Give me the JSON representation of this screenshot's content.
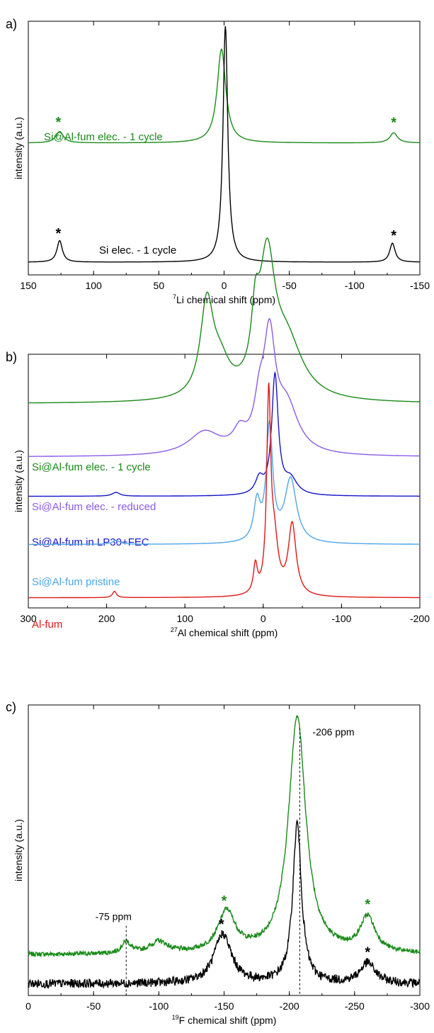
{
  "chart_data": [
    {
      "type": "line",
      "panel": "a)",
      "xlabel_sup": "7",
      "xlabel_main": "Li chemical shift (ppm)",
      "ylabel": "intensity (a.u.)",
      "xlim": [
        150,
        -150
      ],
      "xticks": [
        "150",
        "100",
        "50",
        "0",
        "-50",
        "-100",
        "-150"
      ],
      "xtick_values": [
        150,
        100,
        50,
        0,
        -50,
        -100,
        -150
      ],
      "grid": false,
      "series": [
        {
          "name": "Si@Al-fum elec. - 1 cycle",
          "color": "#1a8a1a",
          "baseline": 0.52,
          "peaks": [
            [
              126,
              0.045,
              3.5
            ],
            [
              2,
              0.37,
              4.0
            ],
            [
              -130,
              0.04,
              3.5
            ]
          ],
          "markers": [
            {
              "x": 127,
              "text": "*"
            },
            {
              "x": -130,
              "text": "*"
            }
          ]
        },
        {
          "name": "Si elec. - 1 cycle",
          "color": "#000000",
          "baseline": 0.05,
          "peaks": [
            [
              126,
              0.085,
              2.5
            ],
            [
              -1,
              0.93,
              2.2
            ],
            [
              -129,
              0.075,
              2.5
            ]
          ],
          "markers": [
            {
              "x": 127,
              "text": "*"
            },
            {
              "x": -130,
              "text": "*"
            }
          ]
        }
      ]
    },
    {
      "type": "line",
      "panel": "b)",
      "xlabel_sup": "27",
      "xlabel_main": "Al chemical shift (ppm)",
      "ylabel": "intensity (a.u.)",
      "xlim": [
        300,
        -200
      ],
      "xticks": [
        "300",
        "200",
        "100",
        "0",
        "-100",
        "-200"
      ],
      "xtick_values": [
        300,
        200,
        100,
        0,
        -100,
        -200
      ],
      "grid": false,
      "series": [
        {
          "name": "Si@Al-fum elec. - 1 cycle",
          "color": "#1a8a1a",
          "baseline": 0.805,
          "peaks": [
            [
              72,
              0.36,
              10
            ],
            [
              55,
              0.12,
              15
            ],
            [
              10,
              0.22,
              6
            ],
            [
              -5,
              0.5,
              12
            ],
            [
              -30,
              0.22,
              25
            ]
          ],
          "markers": []
        },
        {
          "name": "Si@Al-fum elec. - reduced",
          "color": "#8a5ce6",
          "baseline": 0.595,
          "peaks": [
            [
              75,
              0.09,
              25
            ],
            [
              30,
              0.07,
              10
            ],
            [
              5,
              0.15,
              8
            ],
            [
              -8,
              0.42,
              9
            ],
            [
              -30,
              0.18,
              18
            ]
          ],
          "markers": []
        },
        {
          "name": "Si@Al-fum in LP30+FEC",
          "color": "#1515c8",
          "baseline": 0.44,
          "peaks": [
            [
              188,
              0.015,
              6
            ],
            [
              5,
              0.06,
              6
            ],
            [
              -15,
              0.47,
              5
            ],
            [
              -35,
              0.06,
              10
            ]
          ],
          "markers": []
        },
        {
          "name": "Si@Al-fum pristine",
          "color": "#4da6e8",
          "baseline": 0.25,
          "peaks": [
            [
              188,
              0.015,
              6
            ],
            [
              8,
              0.15,
              5
            ],
            [
              -8,
              0.45,
              5
            ],
            [
              -35,
              0.25,
              9
            ]
          ],
          "markers": []
        },
        {
          "name": "Al-fum",
          "color": "#e01818",
          "baseline": 0.04,
          "peaks": [
            [
              190,
              0.025,
              3
            ],
            [
              10,
              0.11,
              3
            ],
            [
              -7,
              0.75,
              3
            ],
            [
              -14,
              0.2,
              6
            ],
            [
              -37,
              0.28,
              6
            ]
          ],
          "markers": []
        }
      ]
    },
    {
      "type": "line",
      "panel": "c)",
      "xlabel_sup": "19",
      "xlabel_main": "F chemical shift (ppm)",
      "ylabel": "intensity (a.u.)",
      "xlim": [
        0,
        -300
      ],
      "xticks": [
        "0",
        "-50",
        "-100",
        "-150",
        "-200",
        "-250",
        "-300"
      ],
      "xtick_values": [
        0,
        -50,
        -100,
        -150,
        -200,
        -250,
        -300
      ],
      "grid": false,
      "annotations": [
        {
          "text": "-75 ppm",
          "x": -75,
          "top": 0.24
        },
        {
          "text": "-206 ppm",
          "x": -208,
          "top": 0.92
        }
      ],
      "series": [
        {
          "name": "",
          "color": "#1a8a1a",
          "baseline": 0.14,
          "noise": 0.008,
          "peaks": [
            [
              -75,
              0.04,
              4
            ],
            [
              -100,
              0.04,
              8
            ],
            [
              -152,
              0.14,
              8
            ],
            [
              -206,
              0.82,
              8
            ],
            [
              -260,
              0.12,
              7
            ]
          ],
          "markers": [
            {
              "x": -150,
              "text": "*"
            },
            {
              "x": -260,
              "text": "*"
            }
          ]
        },
        {
          "name": "",
          "color": "#000000",
          "baseline": 0.04,
          "noise": 0.015,
          "peaks": [
            [
              -149,
              0.17,
              8
            ],
            [
              -206,
              0.55,
              4
            ],
            [
              -260,
              0.07,
              7
            ]
          ],
          "markers": [
            {
              "x": -148,
              "text": "*"
            },
            {
              "x": -260,
              "text": "*"
            }
          ]
        }
      ]
    }
  ]
}
